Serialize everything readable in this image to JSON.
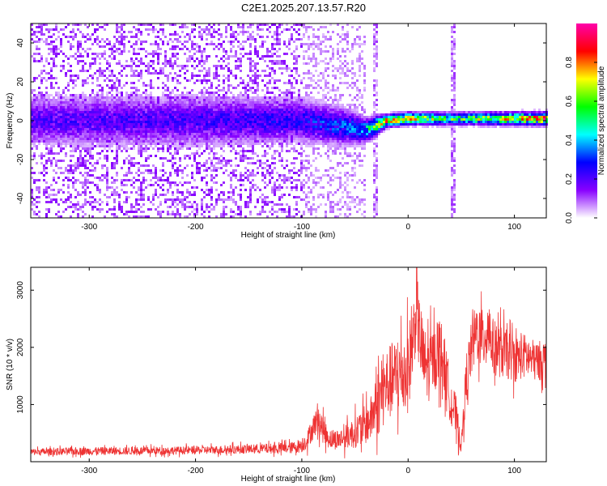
{
  "title": "C2E1.2025.207.13.57.R20",
  "chart_data": [
    {
      "type": "heatmap",
      "xlabel": "Height of straight line (km)",
      "ylabel": "Frequency (Hz)",
      "xlim": [
        -355,
        130
      ],
      "ylim": [
        -50,
        50
      ],
      "xticks": [
        -300,
        -200,
        -100,
        0,
        100
      ],
      "yticks": [
        -40,
        -20,
        0,
        20,
        40
      ],
      "colorbar": {
        "label": "Normalized spectral amplitude",
        "range": [
          0,
          1
        ],
        "ticks": [
          0.0,
          0.2,
          0.4,
          0.6,
          0.8
        ],
        "colors": [
          "#ffffff",
          "#8800ff",
          "#0000ff",
          "#00ffff",
          "#00ff00",
          "#ffff00",
          "#ff0000",
          "#ff00aa"
        ]
      },
      "band": [
        {
          "x": -350,
          "center": 0,
          "halfwidth": 8,
          "peak": 0.22
        },
        {
          "x": -200,
          "center": 0,
          "halfwidth": 8,
          "peak": 0.24
        },
        {
          "x": -100,
          "center": 0,
          "halfwidth": 7,
          "peak": 0.28
        },
        {
          "x": -60,
          "center": -3,
          "halfwidth": 6,
          "peak": 0.35
        },
        {
          "x": -40,
          "center": -5,
          "halfwidth": 4,
          "peak": 0.45
        },
        {
          "x": -20,
          "center": 0,
          "halfwidth": 2,
          "peak": 0.85
        },
        {
          "x": 0,
          "center": 1,
          "halfwidth": 2,
          "peak": 0.75
        },
        {
          "x": 50,
          "center": 1,
          "halfwidth": 2,
          "peak": 0.6
        },
        {
          "x": 130,
          "center": 1,
          "halfwidth": 2,
          "peak": 0.95
        }
      ],
      "vertical_lines": [
        -30,
        42
      ]
    },
    {
      "type": "line",
      "xlabel": "Height of straight line (km)",
      "ylabel": "SNR (10 * v/v)",
      "xlim": [
        -355,
        130
      ],
      "ylim": [
        0,
        3400
      ],
      "xticks": [
        -300,
        -200,
        -100,
        0,
        100
      ],
      "yticks": [
        1000,
        2000,
        3000
      ],
      "series": [
        {
          "color": "#ee3333",
          "x": [
            -355,
            -300,
            -250,
            -200,
            -150,
            -110,
            -100,
            -95,
            -88,
            -85,
            -80,
            -75,
            -70,
            -60,
            -50,
            -40,
            -35,
            -30,
            -28,
            -20,
            -10,
            0,
            5,
            8,
            10,
            15,
            20,
            25,
            30,
            35,
            40,
            45,
            50,
            55,
            60,
            65,
            70,
            75,
            80,
            90,
            100,
            110,
            120,
            130
          ],
          "y": [
            170,
            185,
            190,
            200,
            220,
            240,
            290,
            380,
            650,
            780,
            550,
            420,
            380,
            420,
            520,
            650,
            750,
            1000,
            1050,
            1350,
            1500,
            1600,
            2200,
            2750,
            2300,
            1700,
            1650,
            1850,
            2000,
            1600,
            1100,
            800,
            280,
            1500,
            2000,
            2300,
            2100,
            2400,
            2000,
            1900,
            1800,
            1850,
            1750,
            1800
          ],
          "noise": [
            60,
            70,
            70,
            70,
            80,
            100,
            130,
            160,
            220,
            280,
            230,
            180,
            170,
            200,
            280,
            350,
            400,
            550,
            600,
            650,
            700,
            750,
            700,
            650,
            700,
            650,
            600,
            550,
            600,
            500,
            450,
            350,
            150,
            450,
            500,
            550,
            550,
            600,
            500,
            450,
            400,
            400,
            350,
            350
          ]
        }
      ]
    }
  ]
}
